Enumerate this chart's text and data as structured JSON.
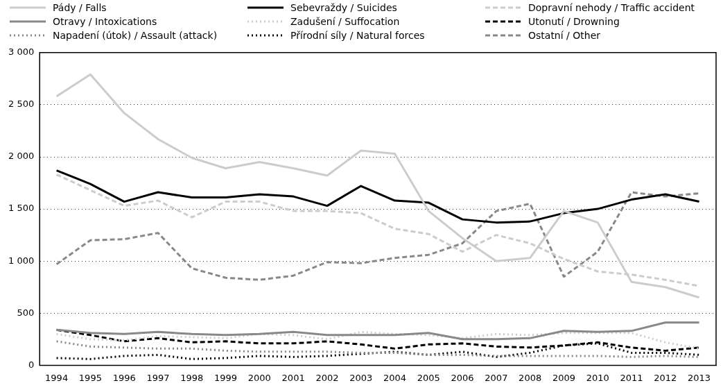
{
  "chart_data": {
    "type": "line",
    "categories": [
      "1994",
      "1995",
      "1996",
      "1997",
      "1998",
      "1999",
      "2000",
      "2001",
      "2002",
      "2003",
      "2004",
      "2005",
      "2006",
      "2007",
      "2008",
      "2009",
      "2010",
      "2011",
      "2012",
      "2013"
    ],
    "ylim": [
      0,
      3000
    ],
    "yticks": [
      0,
      {
        "value": 500,
        "label": "500"
      },
      {
        "value": 1000,
        "label": "1 000"
      },
      {
        "value": 1500,
        "label": "1 500"
      },
      {
        "value": 2000,
        "label": "2 000"
      },
      {
        "value": 2500,
        "label": "2 500"
      },
      {
        "value": 3000,
        "label": "3 000"
      }
    ],
    "grid": "y",
    "legend": "top",
    "marker": "none",
    "series": [
      {
        "name": "Pády / Falls",
        "color": "#cccccc",
        "line_style": "solid",
        "values": [
          2580,
          2790,
          2420,
          2170,
          1990,
          1890,
          1950,
          1890,
          1820,
          2060,
          2030,
          1480,
          1220,
          1000,
          1030,
          1480,
          1370,
          800,
          750,
          650
        ]
      },
      {
        "name": "Sebevraždy / Suicides",
        "color": "#000000",
        "line_style": "solid",
        "values": [
          1870,
          1740,
          1570,
          1660,
          1610,
          1610,
          1640,
          1620,
          1530,
          1720,
          1580,
          1560,
          1400,
          1370,
          1380,
          1460,
          1500,
          1590,
          1640,
          1570
        ]
      },
      {
        "name": "Dopravní nehody / Traffic accident",
        "color": "#cccccc",
        "line_style": "dashed",
        "values": [
          1830,
          1680,
          1530,
          1580,
          1420,
          1570,
          1570,
          1480,
          1480,
          1460,
          1310,
          1260,
          1090,
          1250,
          1170,
          1020,
          900,
          870,
          820,
          760
        ]
      },
      {
        "name": "Otravy / Intoxications",
        "color": "#888888",
        "line_style": "solid",
        "values": [
          340,
          310,
          300,
          320,
          300,
          290,
          300,
          320,
          290,
          290,
          290,
          310,
          250,
          250,
          260,
          330,
          320,
          330,
          410,
          410
        ]
      },
      {
        "name": "Zadušení / Suffocation",
        "color": "#cccccc",
        "line_style": "dotted",
        "values": [
          300,
          250,
          240,
          280,
          270,
          260,
          300,
          290,
          250,
          320,
          300,
          290,
          260,
          300,
          290,
          310,
          310,
          310,
          220,
          160
        ]
      },
      {
        "name": "Utonutí / Drowning",
        "color": "#000000",
        "line_style": "dashed",
        "values": [
          340,
          290,
          230,
          260,
          220,
          230,
          210,
          210,
          230,
          200,
          160,
          200,
          210,
          180,
          170,
          190,
          220,
          170,
          140,
          170
        ]
      },
      {
        "name": "Napadení (útok) / Assault (attack)",
        "color": "#888888",
        "line_style": "dotted",
        "values": [
          230,
          180,
          170,
          160,
          160,
          140,
          130,
          130,
          130,
          120,
          120,
          100,
          100,
          90,
          90,
          90,
          90,
          80,
          90,
          80
        ]
      },
      {
        "name": "Přírodní síly / Natural forces",
        "color": "#000000",
        "line_style": "dotted",
        "values": [
          70,
          60,
          90,
          100,
          60,
          70,
          90,
          80,
          90,
          110,
          130,
          100,
          130,
          80,
          120,
          190,
          210,
          120,
          120,
          100
        ]
      },
      {
        "name": "Ostatní / Other",
        "color": "#888888",
        "line_style": "dashed",
        "values": [
          970,
          1200,
          1210,
          1270,
          930,
          840,
          820,
          860,
          990,
          980,
          1030,
          1060,
          1170,
          1480,
          1550,
          850,
          1090,
          1660,
          1620,
          1650
        ]
      }
    ]
  }
}
